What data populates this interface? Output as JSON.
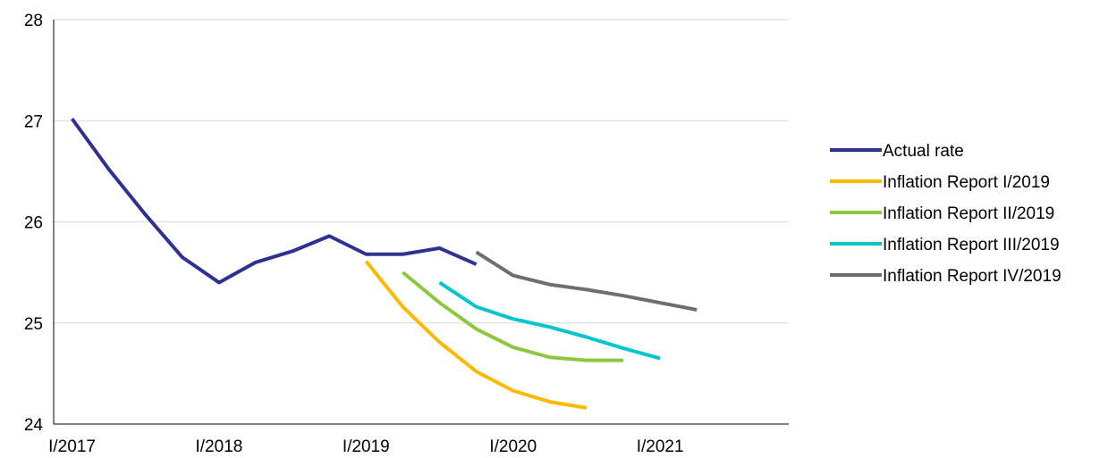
{
  "chart_data": {
    "type": "line",
    "title": "",
    "xlabel": "",
    "ylabel": "",
    "ylim": [
      24,
      28
    ],
    "y_ticks": [
      24,
      25,
      26,
      27,
      28
    ],
    "x_ticks": [
      "I/2017",
      "I/2018",
      "I/2019",
      "I/2020",
      "I/2021"
    ],
    "x_periods": [
      "I/2017",
      "II/2017",
      "III/2017",
      "IV/2017",
      "I/2018",
      "II/2018",
      "III/2018",
      "IV/2018",
      "I/2019",
      "II/2019",
      "III/2019",
      "IV/2019",
      "I/2020",
      "II/2020",
      "III/2020",
      "IV/2020",
      "I/2021",
      "II/2021",
      "III/2021",
      "IV/2021"
    ],
    "grid": true,
    "legend_position": "right",
    "series": [
      {
        "name": "Actual rate",
        "color": "#2e3192",
        "start": "I/2017",
        "values": [
          27.02,
          26.52,
          26.07,
          25.65,
          25.4,
          25.6,
          25.71,
          25.86,
          25.68,
          25.68,
          25.74,
          25.58
        ]
      },
      {
        "name": "Inflation Report I/2019",
        "color": "#fbb900",
        "start": "I/2019",
        "values": [
          25.61,
          25.16,
          24.81,
          24.52,
          24.33,
          24.22,
          24.16
        ]
      },
      {
        "name": "Inflation Report II/2019",
        "color": "#8dc63f",
        "start": "II/2019",
        "values": [
          25.5,
          25.2,
          24.94,
          24.76,
          24.66,
          24.63,
          24.63
        ]
      },
      {
        "name": "Inflation Report III/2019",
        "color": "#00c5cd",
        "start": "III/2019",
        "values": [
          25.4,
          25.16,
          25.04,
          24.96,
          24.86,
          24.75,
          24.65
        ]
      },
      {
        "name": "Inflation Report IV/2019",
        "color": "#6d6e71",
        "start": "IV/2019",
        "values": [
          25.7,
          25.47,
          25.38,
          25.33,
          25.27,
          25.2,
          25.13
        ]
      }
    ]
  }
}
